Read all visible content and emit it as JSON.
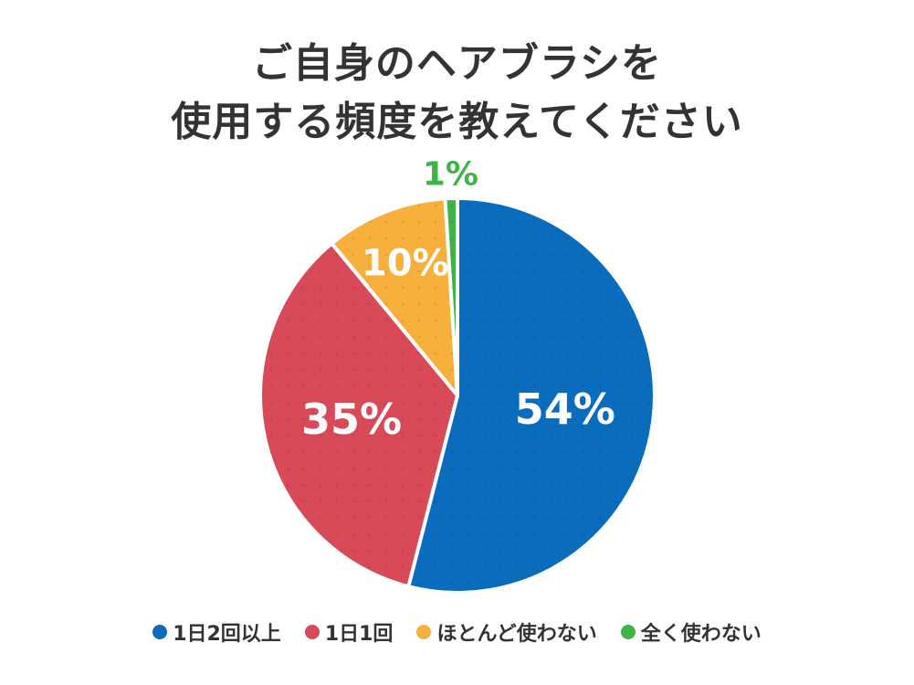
{
  "chart_data": {
    "type": "pie",
    "title_lines": [
      "ご自身のヘアブラシを",
      "使用する頻度を教えてください"
    ],
    "categories": [
      "1日2回以上",
      "1日1回",
      "ほとんど使わない",
      "全く使わない"
    ],
    "values": [
      54,
      35,
      10,
      1
    ],
    "labels": [
      "54%",
      "35%",
      "10%",
      "1%"
    ],
    "colors": [
      "#0a6cbd",
      "#d94a58",
      "#f7b03c",
      "#3fb449"
    ],
    "label_colors": [
      "#ffffff",
      "#ffffff",
      "#ffffff",
      "#3fb449"
    ],
    "legend_position": "bottom"
  }
}
